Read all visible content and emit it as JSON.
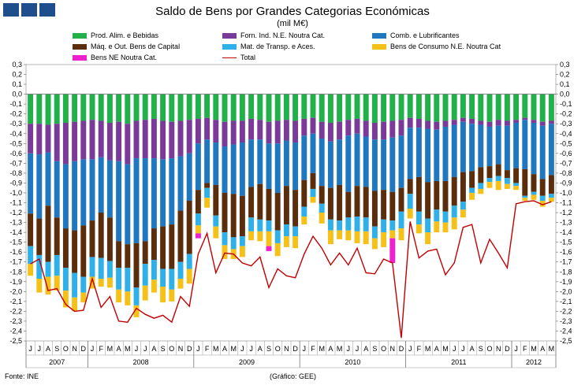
{
  "header": {
    "title": "Saldo de Bens por Grandes Categorias Económicas",
    "subtitle": "(mil M€)"
  },
  "footer": {
    "source": "Fonte: INE",
    "credit": "(Gráfico: GEE)"
  },
  "colors": {
    "food": "#22b04a",
    "industrial": "#7a3a98",
    "fuel": "#1f77c0",
    "machinery": "#5a2e0c",
    "transport": "#2fb0e8",
    "consumer": "#f5c018",
    "nec": "#ee22cc",
    "total": "#c00000"
  },
  "chart_data": {
    "type": "bar",
    "title": "Saldo de Bens por Grandes Categorias Económicas",
    "subtitle": "(mil M€)",
    "ylim": [
      -2.5,
      0.3
    ],
    "yticks": [
      "0,3",
      "0,2",
      "0,1",
      "0,0",
      "-0,1",
      "-0,2",
      "-0,3",
      "-0,4",
      "-0,5",
      "-0,6",
      "-0,7",
      "-0,8",
      "-0,9",
      "-1,0",
      "-1,1",
      "-1,2",
      "-1,3",
      "-1,4",
      "-1,5",
      "-1,6",
      "-1,7",
      "-1,8",
      "-1,9",
      "-2,0",
      "-2,1",
      "-2,2",
      "-2,3",
      "-2,4",
      "-2,5"
    ],
    "months": [
      "J",
      "J",
      "A",
      "S",
      "O",
      "N",
      "D",
      "J",
      "F",
      "M",
      "A",
      "M",
      "J",
      "J",
      "A",
      "S",
      "O",
      "N",
      "D",
      "J",
      "F",
      "M",
      "A",
      "M",
      "J",
      "J",
      "A",
      "S",
      "O",
      "N",
      "D",
      "J",
      "F",
      "M",
      "A",
      "M",
      "J",
      "J",
      "A",
      "S",
      "O",
      "N",
      "D",
      "J",
      "F",
      "M",
      "A",
      "M",
      "J",
      "J",
      "A",
      "S",
      "O",
      "N",
      "D",
      "J",
      "F",
      "M",
      "A",
      "M"
    ],
    "years": [
      {
        "label": "2007",
        "start": 0,
        "end": 6
      },
      {
        "label": "2008",
        "start": 7,
        "end": 18
      },
      {
        "label": "2009",
        "start": 19,
        "end": 30
      },
      {
        "label": "2010",
        "start": 31,
        "end": 42
      },
      {
        "label": "2011",
        "start": 43,
        "end": 54
      },
      {
        "label": "2012",
        "start": 55,
        "end": 59
      }
    ],
    "series": [
      {
        "key": "food",
        "name": "Prod. Alim. e Bebidas",
        "values": [
          -0.3,
          -0.3,
          -0.31,
          -0.3,
          -0.29,
          -0.28,
          -0.27,
          -0.26,
          -0.27,
          -0.29,
          -0.28,
          -0.3,
          -0.27,
          -0.26,
          -0.25,
          -0.27,
          -0.28,
          -0.27,
          -0.26,
          -0.25,
          -0.24,
          -0.26,
          -0.28,
          -0.27,
          -0.27,
          -0.25,
          -0.26,
          -0.28,
          -0.27,
          -0.26,
          -0.27,
          -0.25,
          -0.24,
          -0.28,
          -0.29,
          -0.28,
          -0.26,
          -0.25,
          -0.27,
          -0.29,
          -0.28,
          -0.27,
          -0.26,
          -0.24,
          -0.25,
          -0.27,
          -0.28,
          -0.27,
          -0.26,
          -0.24,
          -0.25,
          -0.27,
          -0.28,
          -0.26,
          -0.27,
          -0.26,
          -0.24,
          -0.26,
          -0.28,
          -0.27
        ]
      },
      {
        "key": "industrial",
        "name": "Forn. Ind. N.E. Noutra Cat.",
        "values": [
          -0.3,
          -0.31,
          -0.28,
          -0.38,
          -0.42,
          -0.4,
          -0.39,
          -0.4,
          -0.37,
          -0.38,
          -0.4,
          -0.41,
          -0.38,
          -0.39,
          -0.4,
          -0.39,
          -0.37,
          -0.36,
          -0.34,
          -0.25,
          -0.22,
          -0.23,
          -0.25,
          -0.24,
          -0.22,
          -0.21,
          -0.2,
          -0.22,
          -0.23,
          -0.21,
          -0.22,
          -0.17,
          -0.16,
          -0.17,
          -0.19,
          -0.18,
          -0.16,
          -0.15,
          -0.16,
          -0.17,
          -0.18,
          -0.17,
          -0.16,
          -0.1,
          -0.09,
          -0.08,
          -0.08,
          -0.06,
          -0.05,
          -0.04,
          -0.05,
          -0.04,
          -0.05,
          -0.06,
          -0.05,
          -0.03,
          -0.02,
          -0.03,
          -0.04,
          -0.03
        ]
      },
      {
        "key": "fuel",
        "name": "Comb. e Lubrificantes",
        "values": [
          -0.61,
          -0.65,
          -0.54,
          -0.57,
          -0.65,
          -0.7,
          -0.67,
          -0.62,
          -0.56,
          -0.58,
          -0.81,
          -0.81,
          -0.86,
          -0.84,
          -0.71,
          -0.68,
          -0.67,
          -0.55,
          -0.48,
          -0.47,
          -0.44,
          -0.43,
          -0.47,
          -0.5,
          -0.54,
          -0.48,
          -0.45,
          -0.46,
          -0.5,
          -0.46,
          -0.48,
          -0.45,
          -0.4,
          -0.48,
          -0.47,
          -0.46,
          -0.57,
          -0.53,
          -0.51,
          -0.52,
          -0.51,
          -0.55,
          -0.53,
          -0.52,
          -0.5,
          -0.54,
          -0.52,
          -0.55,
          -0.53,
          -0.51,
          -0.48,
          -0.43,
          -0.4,
          -0.39,
          -0.45,
          -0.46,
          -0.5,
          -0.52,
          -0.54,
          -0.52
        ]
      },
      {
        "key": "machinery",
        "name": "Máq. e Out. Bens de Capital",
        "values": [
          -0.33,
          -0.37,
          -0.57,
          -0.38,
          -0.4,
          -0.43,
          -0.52,
          -0.37,
          -0.46,
          -0.44,
          -0.27,
          -0.24,
          -0.45,
          -0.23,
          -0.32,
          -0.43,
          -0.45,
          -0.52,
          -0.54,
          -0.24,
          -0.05,
          -0.31,
          -0.4,
          -0.44,
          -0.41,
          -0.31,
          -0.36,
          -0.32,
          -0.38,
          -0.39,
          -0.37,
          -0.27,
          -0.16,
          -0.18,
          -0.32,
          -0.36,
          -0.26,
          -0.31,
          -0.31,
          -0.36,
          -0.3,
          -0.29,
          -0.24,
          -0.15,
          -0.35,
          -0.37,
          -0.29,
          -0.31,
          -0.29,
          -0.3,
          -0.17,
          -0.16,
          -0.12,
          -0.12,
          -0.08,
          -0.15,
          -0.27,
          -0.18,
          -0.17,
          -0.19
        ]
      },
      {
        "key": "transport",
        "name": "Mat. de Transp. e Aces.",
        "values": [
          -0.18,
          -0.24,
          -0.15,
          -0.21,
          -0.23,
          -0.25,
          -0.16,
          -0.2,
          -0.21,
          -0.17,
          -0.22,
          -0.24,
          -0.18,
          -0.22,
          -0.2,
          -0.18,
          -0.21,
          -0.17,
          -0.15,
          -0.12,
          -0.1,
          -0.11,
          -0.13,
          -0.12,
          -0.1,
          -0.14,
          -0.12,
          -0.11,
          -0.13,
          -0.12,
          -0.1,
          -0.1,
          -0.08,
          -0.09,
          -0.11,
          -0.1,
          -0.13,
          -0.15,
          -0.14,
          -0.12,
          -0.13,
          -0.1,
          -0.17,
          -0.15,
          -0.13,
          -0.14,
          -0.12,
          -0.11,
          -0.12,
          -0.08,
          -0.05,
          -0.06,
          -0.04,
          -0.05,
          -0.06,
          -0.03,
          -0.02,
          -0.03,
          -0.05,
          -0.04
        ]
      },
      {
        "key": "consumer",
        "name": "Bens de Consumo N.E. Noutra Cat.",
        "values": [
          -0.12,
          -0.14,
          -0.18,
          -0.15,
          -0.17,
          -0.14,
          -0.1,
          -0.12,
          -0.08,
          -0.1,
          -0.13,
          -0.14,
          -0.12,
          -0.15,
          -0.13,
          -0.16,
          -0.12,
          -0.1,
          -0.15,
          -0.08,
          -0.1,
          -0.12,
          -0.14,
          -0.1,
          -0.11,
          -0.09,
          -0.1,
          -0.15,
          -0.13,
          -0.11,
          -0.12,
          -0.08,
          -0.06,
          -0.11,
          -0.14,
          -0.09,
          -0.1,
          -0.12,
          -0.13,
          -0.11,
          -0.15,
          -0.08,
          -0.12,
          -0.1,
          -0.09,
          -0.12,
          -0.11,
          -0.1,
          -0.12,
          -0.08,
          -0.07,
          -0.05,
          -0.06,
          -0.09,
          -0.05,
          -0.04,
          -0.03,
          -0.05,
          -0.06,
          -0.04
        ]
      },
      {
        "key": "nec",
        "name": "Bens NE Noutra Cat.",
        "values": [
          0,
          0,
          0,
          0,
          0,
          0,
          0,
          0,
          0,
          0,
          0,
          0,
          0,
          0,
          0,
          0,
          0,
          0,
          0,
          -0.05,
          0,
          0,
          0,
          0,
          0,
          0,
          0,
          -0.05,
          0,
          0,
          0,
          0,
          0,
          0,
          0,
          0,
          0,
          0,
          0,
          0,
          0,
          -0.25,
          0,
          0,
          0,
          0,
          0,
          0,
          0,
          0,
          0,
          0,
          0,
          0,
          0,
          0,
          0,
          0,
          0,
          0
        ]
      }
    ],
    "total": [
      -1.72,
      -1.67,
      -1.99,
      -1.97,
      -2.13,
      -2.2,
      -2.19,
      -1.87,
      -2.16,
      -2.05,
      -2.3,
      -2.31,
      -2.17,
      -2.23,
      -2.27,
      -2.24,
      -2.31,
      -2.05,
      -2.15,
      -1.62,
      -1.41,
      -1.81,
      -1.61,
      -1.62,
      -1.71,
      -1.74,
      -1.65,
      -1.96,
      -1.77,
      -1.84,
      -1.86,
      -1.62,
      -1.44,
      -1.56,
      -1.73,
      -1.61,
      -1.73,
      -1.56,
      -1.81,
      -1.82,
      -1.67,
      -1.71,
      -2.47,
      -1.29,
      -1.66,
      -1.59,
      -1.57,
      -1.83,
      -1.71,
      -1.35,
      -1.32,
      -1.71,
      -1.47,
      -1.61,
      -1.76,
      -1.11,
      -1.09,
      -1.08,
      -1.12,
      -1.09
    ]
  },
  "legend": [
    {
      "key": "food",
      "label": "Prod. Alim. e Bebidas"
    },
    {
      "key": "industrial",
      "label": "Forn. Ind. N.E. Noutra Cat."
    },
    {
      "key": "fuel",
      "label": "Comb. e Lubrificantes"
    },
    {
      "key": "machinery",
      "label": "Máq. e Out. Bens de Capital"
    },
    {
      "key": "transport",
      "label": "Mat. de Transp. e Aces."
    },
    {
      "key": "consumer",
      "label": "Bens de Consumo N.E. Noutra Cat"
    },
    {
      "key": "nec",
      "label": "Bens NE Noutra Cat."
    },
    {
      "key": "total",
      "label": "Total"
    }
  ]
}
